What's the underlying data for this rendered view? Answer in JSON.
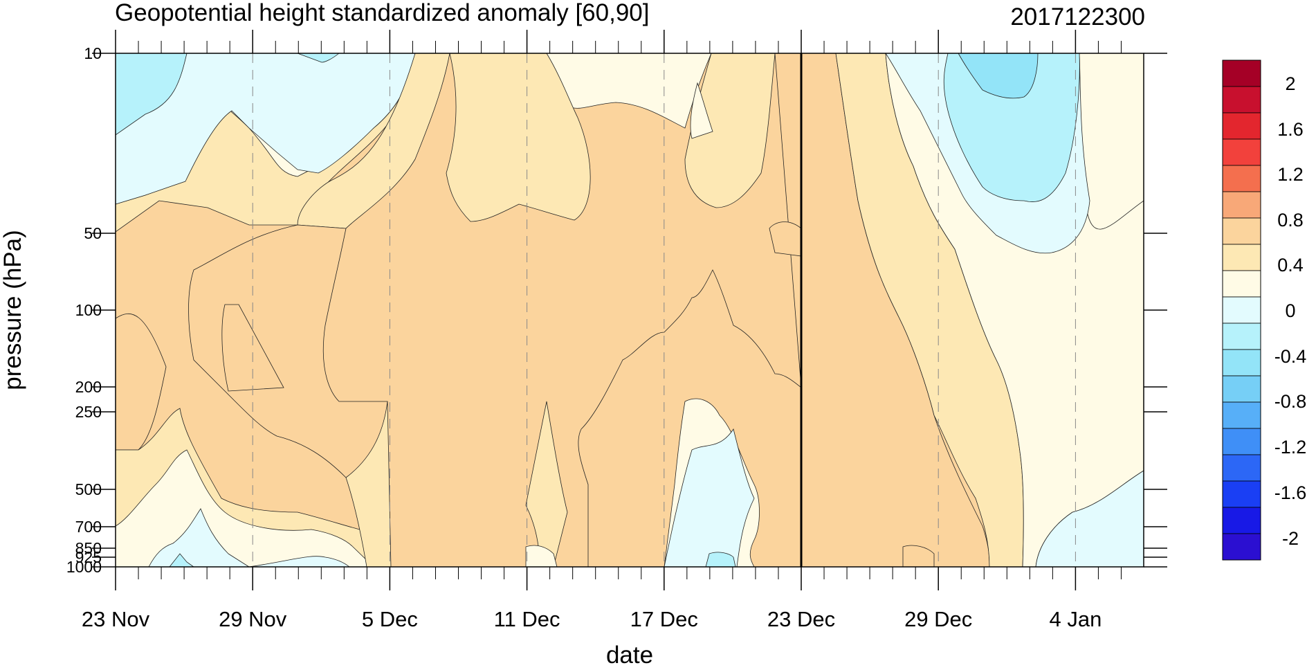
{
  "chart_data": {
    "type": "contour",
    "title": "Geopotential height standardized anomaly [60,90]",
    "datestamp": "2017122300",
    "xlabel": "date",
    "ylabel": "pressure (hPa)",
    "x_ticks": [
      "23 Nov",
      "29 Nov",
      "5 Dec",
      "11 Dec",
      "17 Dec",
      "23 Dec",
      "29 Dec",
      "4 Jan"
    ],
    "y_ticks": [
      "10",
      "50",
      "100",
      "200",
      "250",
      "500",
      "700",
      "850",
      "925",
      "1000"
    ],
    "current_date_marker": "23 Dec",
    "colorbar": {
      "labels": [
        "2",
        "1.6",
        "1.2",
        "0.8",
        "0.4",
        "0",
        "-0.4",
        "-0.8",
        "-1.2",
        "-1.6",
        "-2"
      ],
      "colors": [
        "#a50026",
        "#c8102e",
        "#e3262e",
        "#f2413c",
        "#f46f4e",
        "#f8a878",
        "#fbd49d",
        "#fde8b4",
        "#fffbe6",
        "#e3fbfe",
        "#b6f2fb",
        "#93e4f8",
        "#76cff6",
        "#57aff8",
        "#3f8ff7",
        "#2c67f6",
        "#1a3ff4",
        "#1819e6",
        "#2b0fd1"
      ]
    },
    "value_range": [
      -2,
      2
    ],
    "grid": "dashed vertical lines at date ticks"
  }
}
